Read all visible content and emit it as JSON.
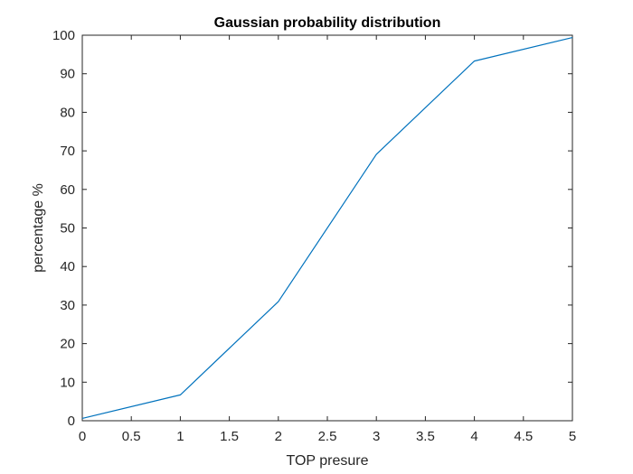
{
  "chart_data": {
    "type": "line",
    "title": "Gaussian probability distribution",
    "xlabel": "TOP presure",
    "ylabel": "percentage %",
    "xlim": [
      0,
      5
    ],
    "ylim": [
      0,
      100
    ],
    "xticks": [
      0,
      0.5,
      1,
      1.5,
      2,
      2.5,
      3,
      3.5,
      4,
      4.5,
      5
    ],
    "xtick_labels": [
      "0",
      "0.5",
      "1",
      "1.5",
      "2",
      "2.5",
      "3",
      "3.5",
      "4",
      "4.5",
      "5"
    ],
    "yticks": [
      0,
      10,
      20,
      30,
      40,
      50,
      60,
      70,
      80,
      90,
      100
    ],
    "ytick_labels": [
      "0",
      "10",
      "20",
      "30",
      "40",
      "50",
      "60",
      "70",
      "80",
      "90",
      "100"
    ],
    "grid": false,
    "legend": "none",
    "series": [
      {
        "x": [
          0,
          1,
          2,
          3,
          4,
          5
        ],
        "y": [
          0.6,
          6.7,
          30.9,
          69.1,
          93.3,
          99.4
        ],
        "color": "#0072BD"
      }
    ]
  }
}
